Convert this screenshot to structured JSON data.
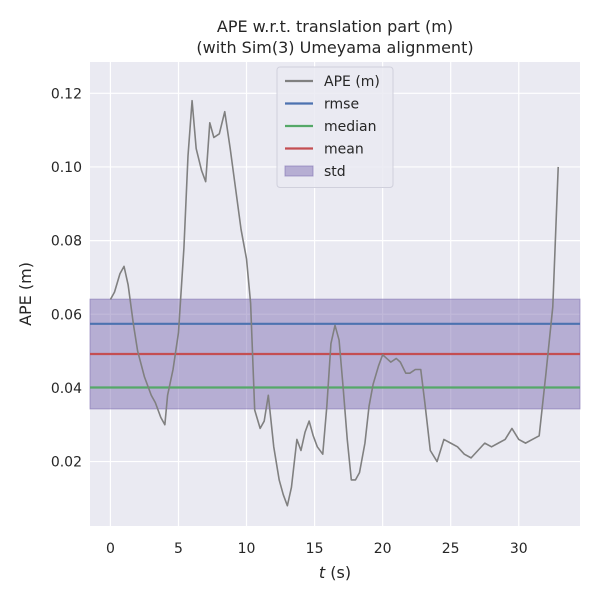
{
  "chart_data": {
    "type": "line",
    "title_line1": "APE w.r.t. translation part (m)",
    "title_line2": "(with Sim(3) Umeyama alignment)",
    "xlabel_var": "t",
    "xlabel_unit": " (s)",
    "ylabel": "APE (m)",
    "xlim": [
      -1.5,
      34.5
    ],
    "ylim": [
      0.0025,
      0.1285
    ],
    "xticks": [
      0,
      5,
      10,
      15,
      20,
      25,
      30
    ],
    "yticks": [
      0.02,
      0.04,
      0.06,
      0.08,
      0.1,
      0.12
    ],
    "ytick_labels": [
      "0.02",
      "0.04",
      "0.06",
      "0.08",
      "0.10",
      "0.12"
    ],
    "grid": true,
    "legend_position": "top-center",
    "series": [
      {
        "name": "APE (m)",
        "color": "#808080",
        "x": [
          0.0,
          0.3,
          0.7,
          1.0,
          1.3,
          1.7,
          2.0,
          2.5,
          3.0,
          3.3,
          3.7,
          4.0,
          4.2,
          4.6,
          5.0,
          5.4,
          5.7,
          6.0,
          6.3,
          6.7,
          7.0,
          7.3,
          7.6,
          8.0,
          8.4,
          8.8,
          9.2,
          9.6,
          10.0,
          10.3,
          10.6,
          11.0,
          11.3,
          11.6,
          12.0,
          12.4,
          12.7,
          13.0,
          13.3,
          13.7,
          14.0,
          14.3,
          14.6,
          14.9,
          15.2,
          15.6,
          15.9,
          16.2,
          16.5,
          16.8,
          17.1,
          17.4,
          17.7,
          18.0,
          18.3,
          18.7,
          19.0,
          19.3,
          19.7,
          20.0,
          20.3,
          20.6,
          21.0,
          21.3,
          21.7,
          22.0,
          22.4,
          22.8,
          23.1,
          23.5,
          24.0,
          24.5,
          25.0,
          25.5,
          26.0,
          26.5,
          27.0,
          27.5,
          28.0,
          28.5,
          29.0,
          29.5,
          30.0,
          30.5,
          31.0,
          31.5,
          32.0,
          32.5,
          32.9
        ],
        "values": [
          0.064,
          0.066,
          0.071,
          0.073,
          0.068,
          0.057,
          0.05,
          0.043,
          0.038,
          0.036,
          0.032,
          0.03,
          0.038,
          0.045,
          0.055,
          0.078,
          0.103,
          0.118,
          0.105,
          0.099,
          0.096,
          0.112,
          0.108,
          0.109,
          0.115,
          0.105,
          0.094,
          0.083,
          0.075,
          0.063,
          0.034,
          0.029,
          0.031,
          0.038,
          0.024,
          0.015,
          0.011,
          0.008,
          0.013,
          0.026,
          0.023,
          0.028,
          0.031,
          0.027,
          0.024,
          0.022,
          0.035,
          0.052,
          0.057,
          0.053,
          0.04,
          0.026,
          0.015,
          0.015,
          0.017,
          0.025,
          0.035,
          0.041,
          0.046,
          0.049,
          0.048,
          0.047,
          0.048,
          0.047,
          0.044,
          0.044,
          0.045,
          0.045,
          0.036,
          0.023,
          0.02,
          0.026,
          0.025,
          0.024,
          0.022,
          0.021,
          0.023,
          0.025,
          0.024,
          0.025,
          0.026,
          0.029,
          0.026,
          0.025,
          0.026,
          0.027,
          0.044,
          0.062,
          0.1
        ]
      }
    ],
    "stats": [
      {
        "name": "rmse",
        "color": "#4c72b0",
        "value": 0.0574
      },
      {
        "name": "median",
        "color": "#55a868",
        "value": 0.0401
      },
      {
        "name": "mean",
        "color": "#c44e52",
        "value": 0.0492
      }
    ],
    "std_band": {
      "name": "std",
      "color": "#8172b3",
      "lower": 0.0343,
      "upper": 0.0641
    },
    "colors": {
      "axes_background": "#eaeaf2",
      "grid": "#ffffff",
      "text": "#262626"
    }
  }
}
